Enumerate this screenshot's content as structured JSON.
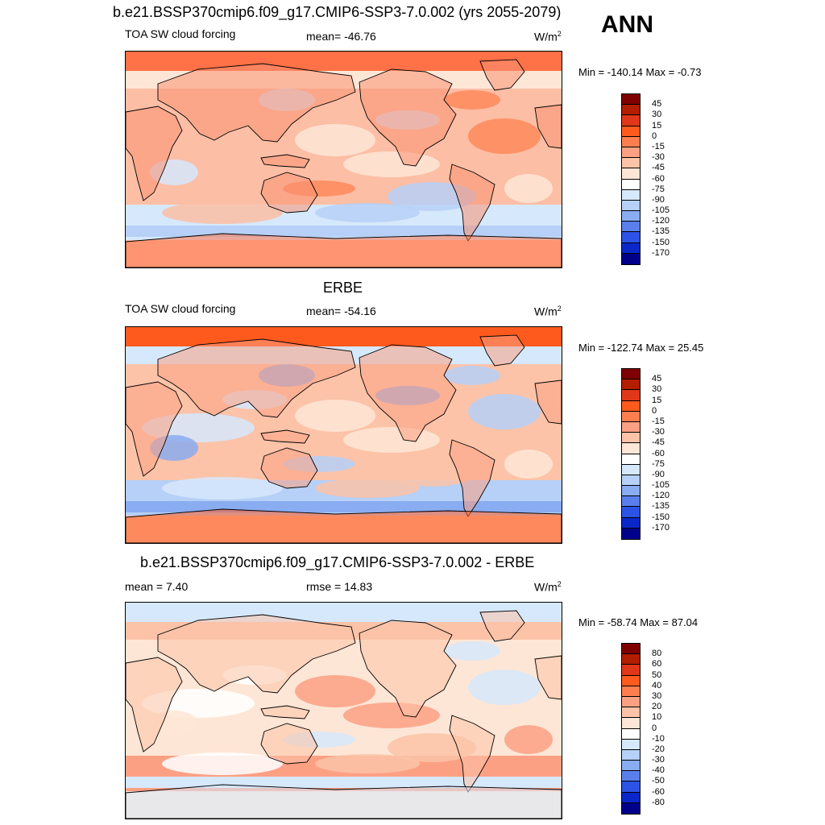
{
  "figure": {
    "main_title": "b.e21.BSSP370cmip6.f09_g17.CMIP6-SSP3-7.0.002 (yrs 2055-2079)",
    "season": "ANN"
  },
  "panels": [
    {
      "title": "",
      "left_label": "TOA SW cloud forcing",
      "center_label": "mean= -46.76",
      "units": "W/m",
      "units_sup": "2",
      "minmax": "Min = -140.14 Max =  -0.73",
      "colorbar": {
        "levels": [
          "45",
          "30",
          "15",
          "0",
          "-15",
          "-30",
          "-45",
          "-60",
          "-75",
          "-90",
          "-105",
          "-120",
          "-135",
          "-150",
          "-170"
        ],
        "colors": [
          "#7f0000",
          "#b31d00",
          "#e0361a",
          "#ff5a1e",
          "#ff7e50",
          "#fca084",
          "#fcc3a8",
          "#fee6d6",
          "#ffffff",
          "#d6e8fb",
          "#b6d0f7",
          "#8aacf0",
          "#5a7fec",
          "#2d52e6",
          "#0b27c9",
          "#00008b"
        ]
      },
      "field_palette": [
        "#fcbea5",
        "#fee6d6",
        "#ff8a5c",
        "#d6e8fb",
        "#b6d0f7"
      ],
      "land_color": "#fa9273",
      "pole_color": "#ff7147"
    },
    {
      "title": "ERBE",
      "left_label": "TOA SW cloud forcing",
      "center_label": "mean= -54.16",
      "units": "W/m",
      "units_sup": "2",
      "minmax": "Min = -122.74 Max =  25.45",
      "colorbar": {
        "levels": [
          "45",
          "30",
          "15",
          "0",
          "-15",
          "-30",
          "-45",
          "-60",
          "-75",
          "-90",
          "-105",
          "-120",
          "-135",
          "-150",
          "-170"
        ],
        "colors": [
          "#7f0000",
          "#b31d00",
          "#e0361a",
          "#ff5a1e",
          "#ff7e50",
          "#fca084",
          "#fcc3a8",
          "#fee6d6",
          "#ffffff",
          "#d6e8fb",
          "#b6d0f7",
          "#8aacf0",
          "#5a7fec",
          "#2d52e6",
          "#0b27c9",
          "#00008b"
        ]
      },
      "field_palette": [
        "#fcc3a8",
        "#d6e8fb",
        "#fee6d6",
        "#b6d0f7",
        "#8aacf0"
      ],
      "land_color": "#fca084",
      "pole_color": "#ff5a1e"
    },
    {
      "title": "b.e21.BSSP370cmip6.f09_g17.CMIP6-SSP3-7.0.002 - ERBE",
      "left_label": "mean =   7.40",
      "center_label": "rmse =  14.83",
      "units": "W/m",
      "units_sup": "2",
      "minmax": "Min = -58.74 Max =  87.04",
      "colorbar": {
        "levels": [
          "80",
          "60",
          "50",
          "40",
          "30",
          "20",
          "10",
          "0",
          "-10",
          "-20",
          "-30",
          "-40",
          "-50",
          "-60",
          "-80"
        ],
        "colors": [
          "#7f0000",
          "#b31d00",
          "#e0361a",
          "#ff5a1e",
          "#ff7e50",
          "#fca084",
          "#fcc3a8",
          "#fee6d6",
          "#ffffff",
          "#d6e8fb",
          "#b6d0f7",
          "#8aacf0",
          "#5a7fec",
          "#2d52e6",
          "#0b27c9",
          "#00008b"
        ]
      },
      "field_palette": [
        "#fee6d6",
        "#fcc3a8",
        "#ffffff",
        "#fca084",
        "#d6e8fb"
      ],
      "land_color": "#fcc3a8",
      "pole_color": "#d6e8fb"
    }
  ]
}
